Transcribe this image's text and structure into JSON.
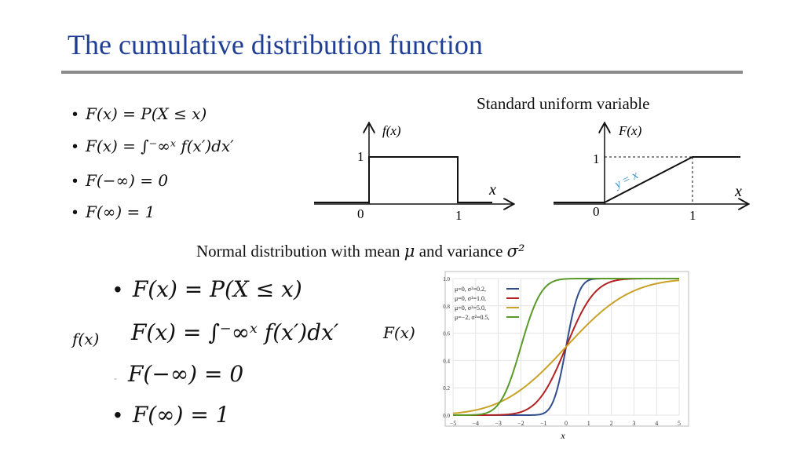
{
  "slide": {
    "title": "The cumulative distribution function"
  },
  "top_bullets": [
    "F(x) = P(X ≤ x)",
    "F(x) = ∫⁻∞ˣ f(x′)dx′",
    "F(−∞) = 0",
    "F(∞) = 1"
  ],
  "uniform": {
    "caption": "Standard uniform variable",
    "pdf_label": "f(x)",
    "cdf_label": "F(x)",
    "x_label": "x",
    "one": "1",
    "zero": "0",
    "line_label": "y = x"
  },
  "normal": {
    "caption_prefix": "Normal distribution with mean ",
    "caption_mu": "μ",
    "caption_mid": " and variance ",
    "caption_sigma": "σ²",
    "side_f": "f(x)",
    "side_F": "F(x)",
    "bullets": [
      "F(x) = P(X ≤ x)",
      "F(x) = ∫⁻∞ˣ f(x′)dx′",
      "F(−∞) = 0",
      "F(∞) = 1"
    ]
  },
  "chart_data": {
    "type": "line",
    "title": "",
    "xlabel": "x",
    "ylabel": "",
    "xlim": [
      -5,
      5
    ],
    "ylim": [
      0,
      1
    ],
    "xticks": [
      "−5",
      "−4",
      "−3",
      "−2",
      "−1",
      "0",
      "1",
      "2",
      "3",
      "4",
      "5"
    ],
    "yticks": [
      "0.0",
      "0.2",
      "0.4",
      "0.6",
      "0.8",
      "1.0"
    ],
    "grid": true,
    "legend_placement": "top-left",
    "series": [
      {
        "name": "μ=0,   σ²=0.2,",
        "mu": 0,
        "var": 0.2,
        "color": "#2f4e8c"
      },
      {
        "name": "μ=0,   σ²=1.0,",
        "mu": 0,
        "var": 1.0,
        "color": "#b22222"
      },
      {
        "name": "μ=0,   σ²=5.0,",
        "mu": 0,
        "var": 5.0,
        "color": "#c9a227"
      },
      {
        "name": "μ=−2, σ²=0.5,",
        "mu": -2,
        "var": 0.5,
        "color": "#5a9a2a"
      }
    ]
  }
}
